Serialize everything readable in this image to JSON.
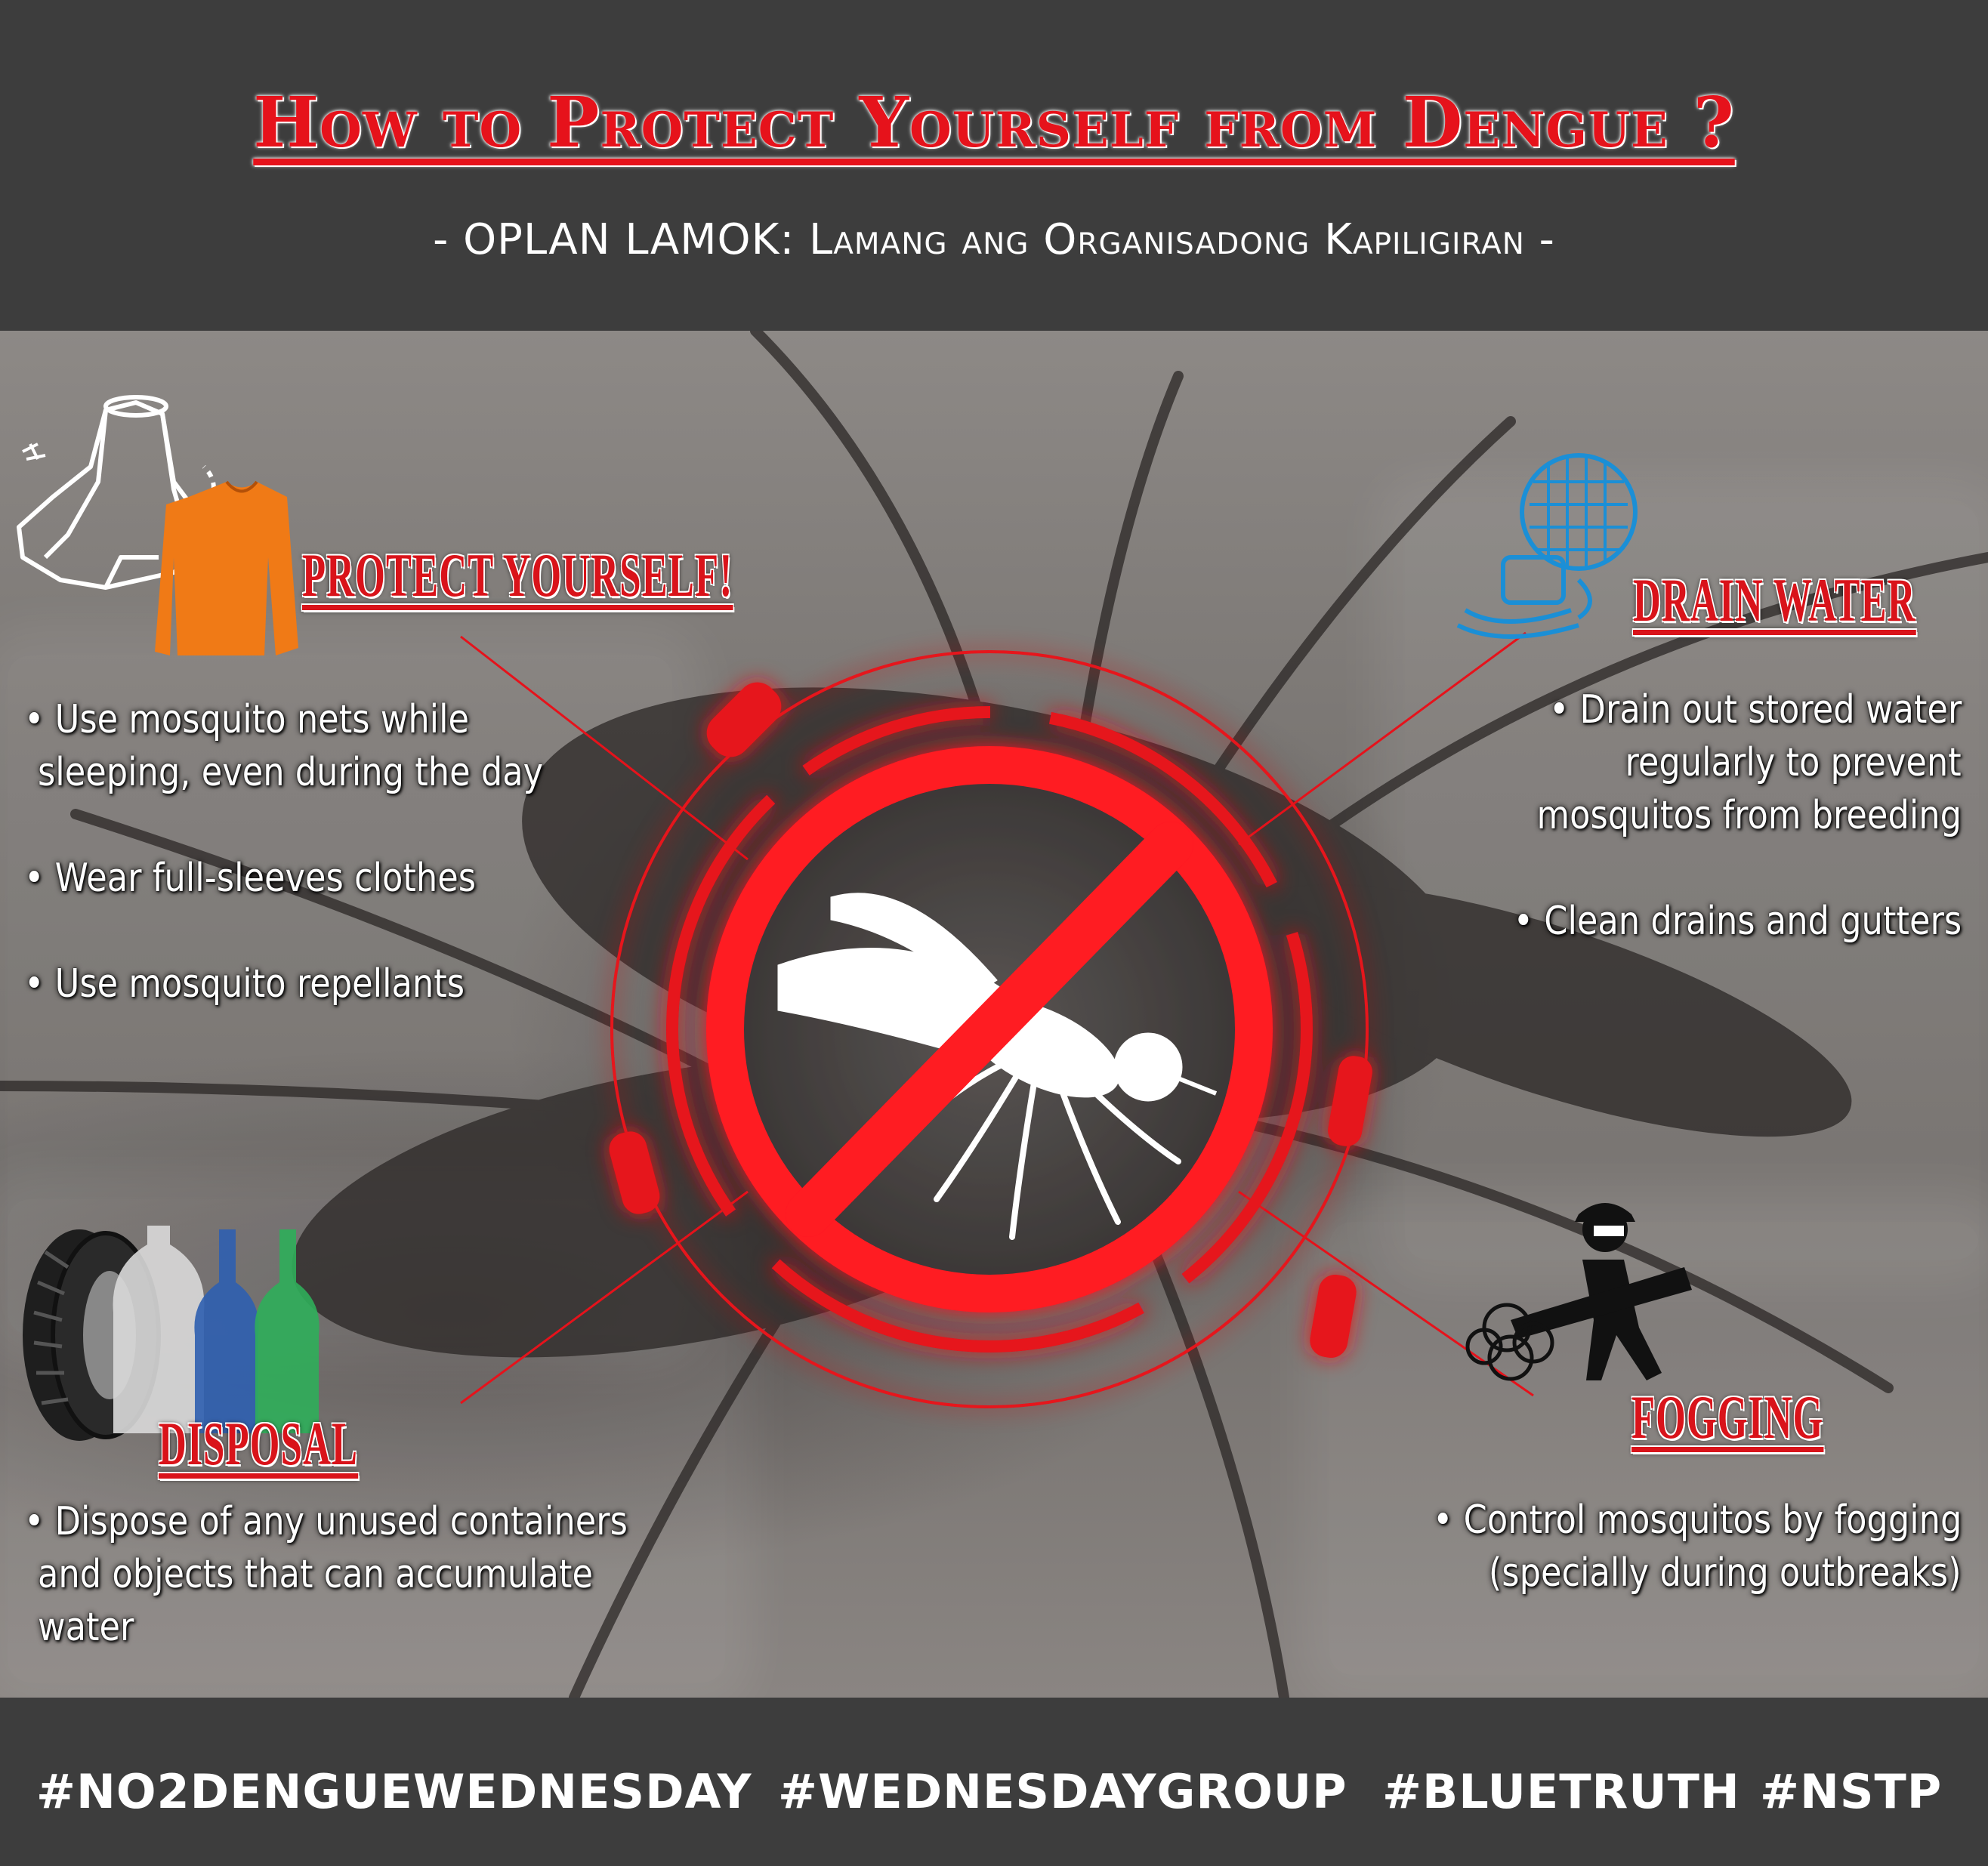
{
  "header": {
    "title": "How to Protect Yourself from Dengue ?",
    "subtitle": "- OPLAN LAMOK: Lamang ang Organisadong Kapiligiran -"
  },
  "sections": {
    "protect": {
      "title": "PROTECT YOURSELF!",
      "bullets": [
        "• Use mosquito nets while",
        "sleeping, even during the day",
        "• Wear full-sleeves clothes",
        "• Use mosquito repellants"
      ]
    },
    "drain": {
      "title": "DRAIN WATER",
      "bullets": [
        "• Drain out stored water",
        "regularly to prevent",
        "mosquitos from breeding",
        "• Clean drains and gutters"
      ]
    },
    "disposal": {
      "title": "DISPOSAL",
      "bullets": [
        "• Dispose of any unused containers",
        "and objects that can accumulate",
        "water"
      ]
    },
    "fogging": {
      "title": "FOGGING",
      "bullets": [
        "• Control mosquitos by fogging",
        "(specially during outbreaks)"
      ]
    }
  },
  "footer": {
    "tags": [
      "#NO2DENGUEWEDNESDAY",
      "#WEDNESDAYGROUP",
      "#BLUETRUTH",
      "#NSTP"
    ]
  },
  "icons": {
    "center": "no-mosquito-icon",
    "protect": [
      "mosquito-net-icon",
      "long-sleeve-shirt-icon"
    ],
    "drain": "drain-grate-icon",
    "disposal": [
      "tire-icon",
      "bottle-icon"
    ],
    "fogging": "fogging-worker-icon"
  },
  "colors": {
    "accent_red": "#e6121b",
    "header_bg": "#3d3d3d",
    "shirt_orange": "#f07a16",
    "drain_blue": "#1b8fd6",
    "bottle_blue": "#2f5fb0",
    "bottle_green": "#2fae5a"
  }
}
